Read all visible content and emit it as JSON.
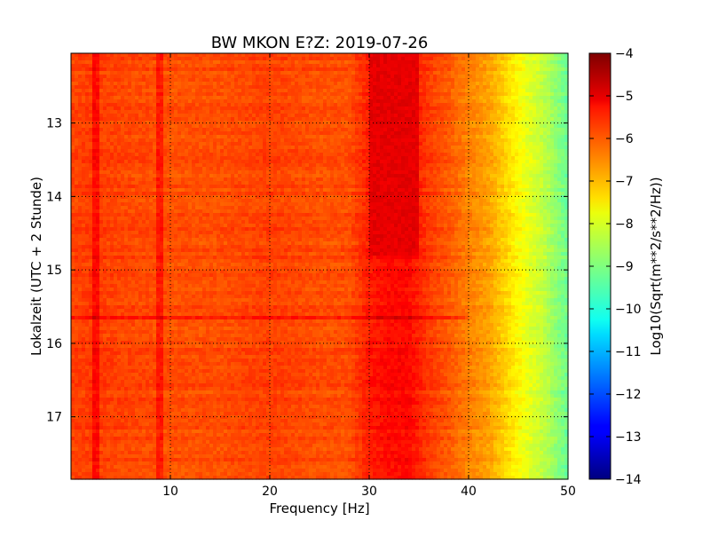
{
  "chart_data": {
    "type": "heatmap",
    "title": "BW MKON E?Z: 2019-07-26",
    "xlabel": "Frequency [Hz]",
    "ylabel": "Lokalzeit (UTC + 2 Stunde)",
    "xlim": [
      0.0,
      50.0
    ],
    "ylim": [
      17.85,
      12.05
    ],
    "x_ticks": [
      10,
      20,
      30,
      40,
      50
    ],
    "x_tick_labels": [
      "10",
      "20",
      "30",
      "40",
      "50"
    ],
    "y_ticks": [
      13,
      14,
      15,
      16,
      17
    ],
    "y_tick_labels": [
      "13",
      "14",
      "15",
      "16",
      "17"
    ],
    "grid": true,
    "colormap": "jet",
    "colorbar": {
      "label": "Log10(Sqrt(m**2/s**2/Hz))",
      "range": [
        -14,
        -4
      ],
      "ticks": [
        -4,
        -5,
        -6,
        -7,
        -8,
        -9,
        -10,
        -11,
        -12,
        -13,
        -14
      ],
      "tick_labels": [
        "−4",
        "−5",
        "−6",
        "−7",
        "−8",
        "−9",
        "−10",
        "−11",
        "−12",
        "−13",
        "−14"
      ]
    },
    "frequency_hz": [
      0,
      2,
      5,
      8,
      10,
      15,
      20,
      25,
      28,
      30,
      32,
      34,
      36,
      38,
      40,
      42,
      43,
      44,
      45,
      46,
      47,
      48,
      49,
      50
    ],
    "baseline_log10_amplitude": [
      -5.9,
      -5.8,
      -5.9,
      -5.95,
      -6.0,
      -6.0,
      -5.85,
      -6.0,
      -6.0,
      -5.5,
      -5.3,
      -5.3,
      -5.8,
      -6.1,
      -6.5,
      -6.8,
      -7.1,
      -7.4,
      -7.7,
      -8.0,
      -8.2,
      -8.5,
      -8.9,
      -9.2
    ],
    "strong_band_30_35hz_log10": -5.0,
    "vertical_lines_hz": [
      2.5,
      9.0
    ],
    "horizontal_line_hour": 15.65
  }
}
